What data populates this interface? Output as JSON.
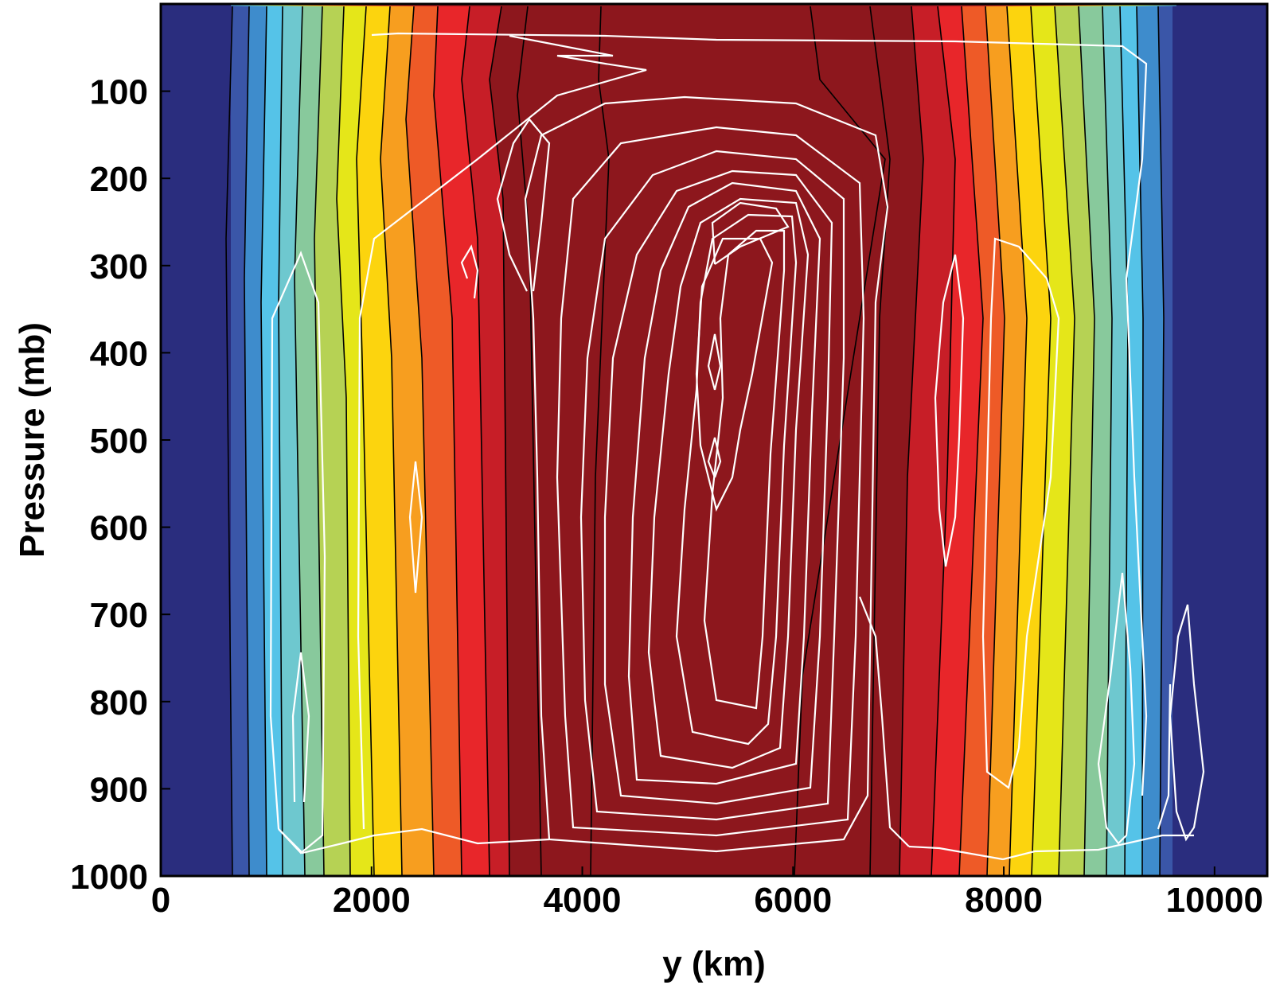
{
  "chart_data": {
    "type": "contour",
    "xlabel": "y (km)",
    "ylabel": "Pressure (mb)",
    "xlim": [
      0,
      10500
    ],
    "ylim": [
      1000,
      0
    ],
    "x_ticks": [
      0,
      2000,
      4000,
      6000,
      8000,
      10000
    ],
    "y_ticks": [
      100,
      200,
      300,
      400,
      500,
      600,
      700,
      800,
      900,
      1000
    ],
    "x_tick_labels": [
      "0",
      "2000",
      "4000",
      "6000",
      "8000",
      "10000"
    ],
    "y_tick_labels": [
      "100",
      "200",
      "300",
      "400",
      "500",
      "600",
      "700",
      "800",
      "900",
      "1000"
    ],
    "filled_contour_colors": [
      "#2a2d7e",
      "#3a56a8",
      "#3e8ccc",
      "#55c3e8",
      "#6ec8cf",
      "#88c99c",
      "#b6d254",
      "#e5e619",
      "#fcd40e",
      "#f79e1f",
      "#ee5a27",
      "#e8262a",
      "#c71e27",
      "#8d171d"
    ],
    "filled_contour_band_boundaries_x_surface": [
      720,
      880,
      1040,
      1200,
      1370,
      1580,
      1760,
      2000,
      2320,
      2600,
      3000,
      3400,
      3720,
      4200,
      6200,
      6750,
      7200,
      7500,
      7800,
      8050,
      8300,
      8550,
      8850,
      9150,
      9400,
      9600,
      9800
    ],
    "filled_contour_band_boundaries_x_top": [
      720,
      880,
      1040,
      1200,
      1370,
      1580,
      1760,
      1970,
      2200,
      2400,
      2650,
      2900,
      3200,
      3500,
      4300,
      6300,
      6800,
      7100,
      7300,
      7550,
      7800,
      8050,
      8300,
      8550,
      8800,
      9100,
      9600,
      9800
    ],
    "line_contour_color": "#ffffff",
    "core_maximum": {
      "y_km": 5300,
      "pressure_mb": 270
    }
  }
}
